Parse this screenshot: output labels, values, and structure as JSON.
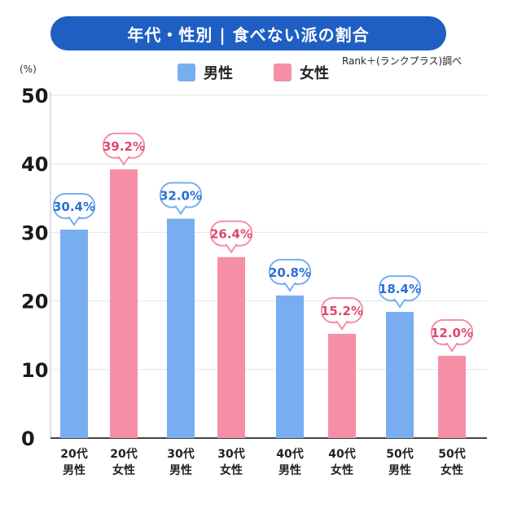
{
  "title": "年代・性別 | 食べない派の割合",
  "source": "Rank＋(ランクプラス)調べ",
  "unit": "(%)",
  "colors": {
    "male": "#78aef0",
    "female": "#f58fa6",
    "title_bg": "#1f5fc4",
    "male_text": "#2a6fd6",
    "female_text": "#e0476c"
  },
  "chart_data": {
    "type": "bar",
    "title": "年代・性別 | 食べない派の割合",
    "ylabel": "(%)",
    "ylim": [
      0,
      50
    ],
    "yticks": [
      "0",
      "10",
      "20",
      "30",
      "40",
      "50"
    ],
    "grid": true,
    "legend": [
      "男性",
      "女性"
    ],
    "legend_position": "top",
    "categories": [
      {
        "line1": "20代",
        "line2": "男性"
      },
      {
        "line1": "20代",
        "line2": "女性"
      },
      {
        "line1": "30代",
        "line2": "男性"
      },
      {
        "line1": "30代",
        "line2": "女性"
      },
      {
        "line1": "40代",
        "line2": "男性"
      },
      {
        "line1": "40代",
        "line2": "女性"
      },
      {
        "line1": "50代",
        "line2": "男性"
      },
      {
        "line1": "50代",
        "line2": "女性"
      }
    ],
    "values": [
      30.4,
      39.2,
      32.0,
      26.4,
      20.8,
      15.2,
      18.4,
      12.0
    ],
    "genders": [
      "male",
      "female",
      "male",
      "female",
      "male",
      "female",
      "male",
      "female"
    ],
    "value_labels": [
      "30.4%",
      "39.2%",
      "32.0%",
      "26.4%",
      "20.8%",
      "15.2%",
      "18.4%",
      "12.0%"
    ]
  }
}
